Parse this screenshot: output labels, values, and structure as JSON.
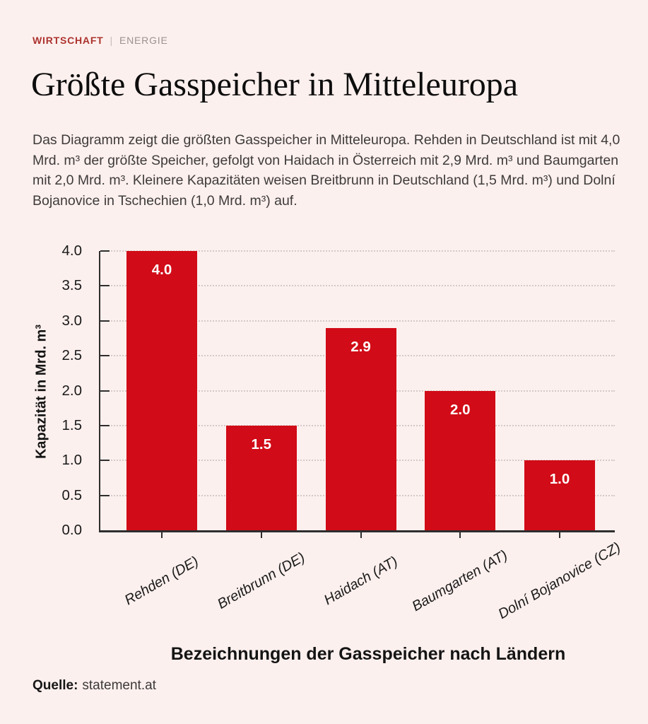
{
  "header": {
    "category": "WIRTSCHAFT",
    "separator": "|",
    "topic": "ENERGIE"
  },
  "article": {
    "title": "Größte Gasspeicher in Mitteleuropa",
    "description": "Das Diagramm zeigt die größten Gasspeicher in Mitteleuropa. Rehden in Deutschland ist mit 4,0 Mrd. m³ der größte Speicher, gefolgt von Haidach in Österreich mit 2,9 Mrd. m³ und Baumgarten mit 2,0 Mrd. m³. Kleinere Kapazitäten weisen Breitbrunn in Deutschland (1,5 Mrd. m³) und Dolní Bojanovice in Tschechien (1,0 Mrd. m³) auf."
  },
  "source": {
    "label": "Quelle:",
    "value": "statement.at"
  },
  "chart_data": {
    "type": "bar",
    "categories": [
      "Rehden (DE)",
      "Breitbrunn (DE)",
      "Haidach (AT)",
      "Baumgarten (AT)",
      "Dolní Bojanovice (CZ)"
    ],
    "values": [
      4.0,
      1.5,
      2.9,
      2.0,
      1.0
    ],
    "bar_labels": [
      "4.0",
      "1.5",
      "2.9",
      "2.0",
      "1.0"
    ],
    "xlabel": "Bezeichnungen der Gasspeicher nach Ländern",
    "ylabel": "Kapazität in Mrd. m³",
    "ylim": [
      0.0,
      4.0
    ],
    "ytick_interval": 0.5,
    "ytick_labels": [
      "0.0",
      "0.5",
      "1.0",
      "1.5",
      "2.0",
      "2.5",
      "3.0",
      "3.5",
      "4.0"
    ],
    "grid": "horizontal-dotted",
    "legend": "none",
    "bar_color": "#d10b17",
    "bar_label_color": "#ffffff",
    "background_color": "#fcf0ee"
  }
}
